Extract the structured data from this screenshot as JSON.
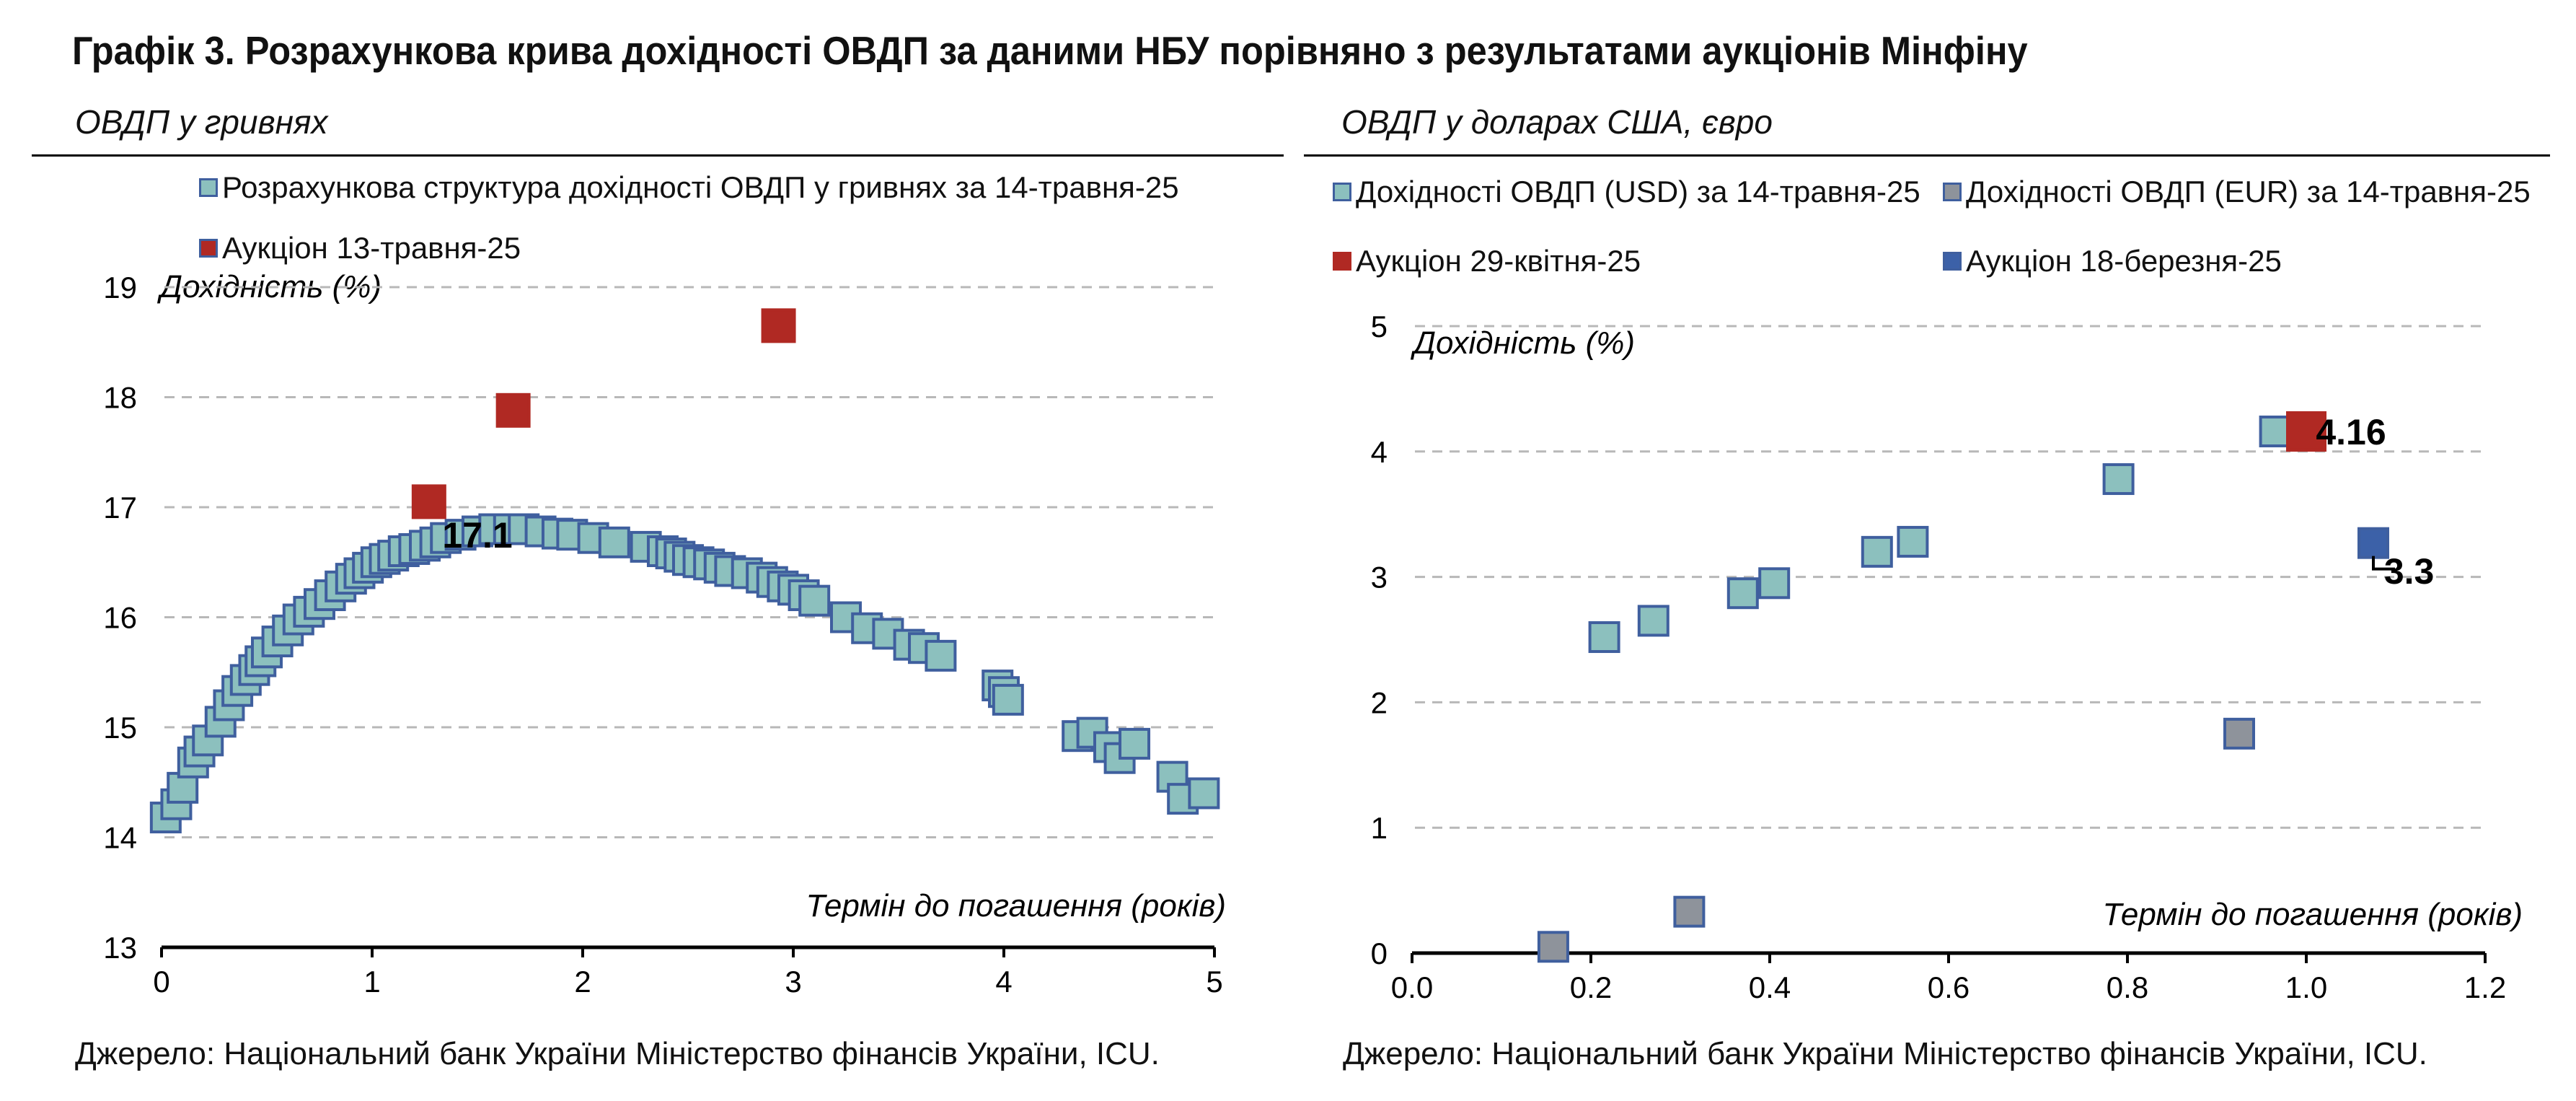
{
  "title": "Графік 3. Розрахункова крива дохідності ОВДП за даними НБУ порівняно з результатами аукціонів Мінфіну",
  "colors": {
    "teal": "#8cc0be",
    "red": "#b02923",
    "gray": "#8e939b",
    "blue": "#3c61a8",
    "edge": "#3f5f9e"
  },
  "left": {
    "subtitle": "ОВДП у гривнях",
    "legend": [
      {
        "label": "Розрахункова структура дохідності ОВДП у гривнях за 14-травня-25",
        "color": "teal"
      },
      {
        "label": "Аукціон 13-травня-25",
        "color": "red"
      }
    ],
    "source": "Джерело: Національний банк України Міністерство фінансів України, ICU."
  },
  "right": {
    "subtitle": "ОВДП у доларах США, євро",
    "legend": [
      {
        "label": "Дохідності ОВДП (USD) за 14-травня-25",
        "color": "teal"
      },
      {
        "label": "Дохідності ОВДП (EUR) за 14-травня-25",
        "color": "gray"
      },
      {
        "label": "Аукціон 29-квітня-25",
        "color": "red"
      },
      {
        "label": "Аукціон 18-березня-25",
        "color": "blue"
      }
    ],
    "source": "Джерело: Національний банк України Міністерство фінансів України, ICU."
  },
  "chart_data": [
    {
      "type": "scatter",
      "ylabel": "Дохідність (%)",
      "xlabel": "Термін до погашення (років)",
      "xlim": [
        0,
        5
      ],
      "ylim": [
        13,
        19
      ],
      "xticks": [
        "0",
        "1",
        "2",
        "3",
        "4",
        "5"
      ],
      "yticks": [
        "13",
        "14",
        "15",
        "16",
        "17",
        "18",
        "19"
      ],
      "grid": "horizontal dashed",
      "series": [
        {
          "name": "Розрахункова структура дохідності ОВДП у гривнях за 14-травня-25",
          "color": "teal",
          "points": [
            [
              0.02,
              14.18
            ],
            [
              0.07,
              14.3
            ],
            [
              0.1,
              14.45
            ],
            [
              0.15,
              14.68
            ],
            [
              0.18,
              14.78
            ],
            [
              0.22,
              14.88
            ],
            [
              0.28,
              15.05
            ],
            [
              0.32,
              15.2
            ],
            [
              0.36,
              15.33
            ],
            [
              0.4,
              15.43
            ],
            [
              0.44,
              15.52
            ],
            [
              0.47,
              15.6
            ],
            [
              0.5,
              15.68
            ],
            [
              0.55,
              15.78
            ],
            [
              0.6,
              15.88
            ],
            [
              0.65,
              15.98
            ],
            [
              0.7,
              16.05
            ],
            [
              0.75,
              16.12
            ],
            [
              0.8,
              16.2
            ],
            [
              0.85,
              16.28
            ],
            [
              0.9,
              16.35
            ],
            [
              0.94,
              16.4
            ],
            [
              0.98,
              16.45
            ],
            [
              1.02,
              16.5
            ],
            [
              1.06,
              16.53
            ],
            [
              1.1,
              16.56
            ],
            [
              1.15,
              16.6
            ],
            [
              1.2,
              16.62
            ],
            [
              1.25,
              16.65
            ],
            [
              1.3,
              16.68
            ],
            [
              1.35,
              16.72
            ],
            [
              1.42,
              16.75
            ],
            [
              1.5,
              16.78
            ],
            [
              1.58,
              16.8
            ],
            [
              1.65,
              16.8
            ],
            [
              1.72,
              16.8
            ],
            [
              1.8,
              16.78
            ],
            [
              1.88,
              16.76
            ],
            [
              1.95,
              16.75
            ],
            [
              2.05,
              16.72
            ],
            [
              2.15,
              16.68
            ],
            [
              2.3,
              16.64
            ],
            [
              2.38,
              16.6
            ],
            [
              2.42,
              16.58
            ],
            [
              2.46,
              16.55
            ],
            [
              2.5,
              16.52
            ],
            [
              2.55,
              16.5
            ],
            [
              2.6,
              16.48
            ],
            [
              2.65,
              16.45
            ],
            [
              2.7,
              16.42
            ],
            [
              2.78,
              16.4
            ],
            [
              2.85,
              16.36
            ],
            [
              2.9,
              16.32
            ],
            [
              2.95,
              16.28
            ],
            [
              3.0,
              16.25
            ],
            [
              3.05,
              16.2
            ],
            [
              3.1,
              16.15
            ],
            [
              3.25,
              16.0
            ],
            [
              3.35,
              15.9
            ],
            [
              3.45,
              15.85
            ],
            [
              3.55,
              15.75
            ],
            [
              3.62,
              15.72
            ],
            [
              3.7,
              15.65
            ],
            [
              3.97,
              15.38
            ],
            [
              4.0,
              15.32
            ],
            [
              4.02,
              15.25
            ],
            [
              4.35,
              14.92
            ],
            [
              4.42,
              14.95
            ],
            [
              4.5,
              14.82
            ],
            [
              4.55,
              14.72
            ],
            [
              4.62,
              14.85
            ],
            [
              4.8,
              14.55
            ],
            [
              4.85,
              14.35
            ],
            [
              4.95,
              14.4
            ]
          ]
        },
        {
          "name": "Аукціон 13-травня-25",
          "color": "red",
          "points": [
            [
              1.27,
              17.05
            ],
            [
              1.67,
              17.88
            ],
            [
              2.93,
              18.65
            ]
          ]
        }
      ],
      "annotations": [
        {
          "text": "17.1",
          "x": 1.5,
          "y": 16.75
        }
      ]
    },
    {
      "type": "scatter",
      "ylabel": "Дохідність (%)",
      "xlabel": "Термін до погашення (років)",
      "xlim": [
        0,
        1.2
      ],
      "ylim": [
        0,
        5
      ],
      "xticks": [
        "0.0",
        "0.2",
        "0.4",
        "0.6",
        "0.8",
        "1.0",
        "1.2"
      ],
      "yticks": [
        "0",
        "1",
        "2",
        "3",
        "4",
        "5"
      ],
      "grid": "horizontal dashed",
      "series": [
        {
          "name": "Дохідності ОВДП (USD) за 14-травня-25",
          "color": "teal",
          "points": [
            [
              0.215,
              2.52
            ],
            [
              0.27,
              2.65
            ],
            [
              0.37,
              2.87
            ],
            [
              0.405,
              2.95
            ],
            [
              0.52,
              3.2
            ],
            [
              0.56,
              3.28
            ],
            [
              0.79,
              3.78
            ],
            [
              0.965,
              4.16
            ]
          ]
        },
        {
          "name": "Дохідності ОВДП (EUR) за 14-травня-25",
          "color": "gray",
          "points": [
            [
              0.158,
              0.05
            ],
            [
              0.31,
              0.33
            ],
            [
              0.925,
              1.75
            ]
          ]
        },
        {
          "name": "Аукціон 29-квітня-25",
          "color": "red",
          "points": [
            [
              1.0,
              4.16
            ]
          ]
        },
        {
          "name": "Аукціон 18-березня-25",
          "color": "blue",
          "points": [
            [
              1.075,
              3.27
            ]
          ]
        }
      ],
      "annotations": [
        {
          "text": "4.16",
          "x": 1.05,
          "y": 4.16
        },
        {
          "text": "3.3",
          "x": 1.115,
          "y": 3.05
        }
      ]
    }
  ]
}
